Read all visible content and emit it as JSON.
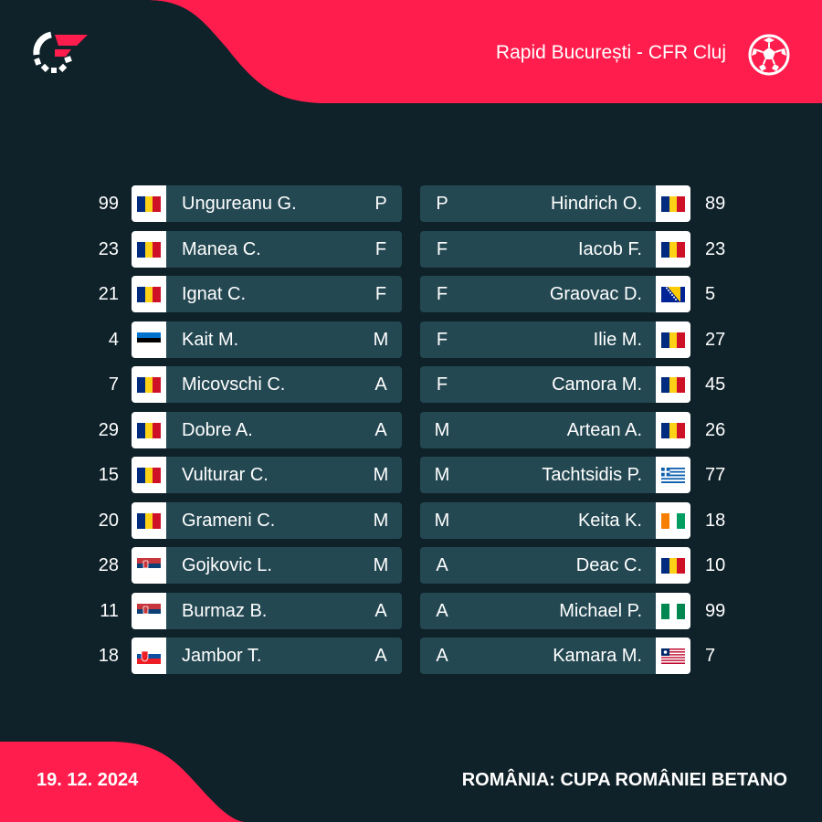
{
  "header": {
    "match_title": "Rapid București - CFR Cluj",
    "logo_icon": "flashscore-logo-icon",
    "ball_icon": "football-icon"
  },
  "colors": {
    "background": "#0f2129",
    "accent": "#ff1d4d",
    "card": "#244852"
  },
  "home": [
    {
      "number": "99",
      "name": "Ungureanu G.",
      "pos": "P",
      "flag": "romania"
    },
    {
      "number": "23",
      "name": "Manea C.",
      "pos": "F",
      "flag": "romania"
    },
    {
      "number": "21",
      "name": "Ignat C.",
      "pos": "F",
      "flag": "romania"
    },
    {
      "number": "4",
      "name": "Kait M.",
      "pos": "M",
      "flag": "estonia"
    },
    {
      "number": "7",
      "name": "Micovschi C.",
      "pos": "A",
      "flag": "romania"
    },
    {
      "number": "29",
      "name": "Dobre A.",
      "pos": "A",
      "flag": "romania"
    },
    {
      "number": "15",
      "name": "Vulturar C.",
      "pos": "M",
      "flag": "romania"
    },
    {
      "number": "20",
      "name": "Grameni C.",
      "pos": "M",
      "flag": "romania"
    },
    {
      "number": "28",
      "name": "Gojkovic L.",
      "pos": "M",
      "flag": "serbia"
    },
    {
      "number": "11",
      "name": "Burmaz B.",
      "pos": "A",
      "flag": "serbia"
    },
    {
      "number": "18",
      "name": "Jambor T.",
      "pos": "A",
      "flag": "slovakia"
    }
  ],
  "away": [
    {
      "number": "89",
      "name": "Hindrich O.",
      "pos": "P",
      "flag": "romania"
    },
    {
      "number": "23",
      "name": "Iacob F.",
      "pos": "F",
      "flag": "romania"
    },
    {
      "number": "5",
      "name": "Graovac D.",
      "pos": "F",
      "flag": "bosnia"
    },
    {
      "number": "27",
      "name": "Ilie M.",
      "pos": "F",
      "flag": "romania"
    },
    {
      "number": "45",
      "name": "Camora M.",
      "pos": "F",
      "flag": "romania"
    },
    {
      "number": "26",
      "name": "Artean A.",
      "pos": "M",
      "flag": "romania"
    },
    {
      "number": "77",
      "name": "Tachtsidis P.",
      "pos": "M",
      "flag": "greece"
    },
    {
      "number": "18",
      "name": "Keita K.",
      "pos": "M",
      "flag": "ivory-coast"
    },
    {
      "number": "10",
      "name": "Deac C.",
      "pos": "A",
      "flag": "romania"
    },
    {
      "number": "99",
      "name": "Michael P.",
      "pos": "A",
      "flag": "nigeria"
    },
    {
      "number": "7",
      "name": "Kamara M.",
      "pos": "A",
      "flag": "liberia"
    }
  ],
  "footer": {
    "date": "19. 12. 2024",
    "competition": "ROMÂNIA: CUPA ROMÂNIEI BETANO"
  }
}
